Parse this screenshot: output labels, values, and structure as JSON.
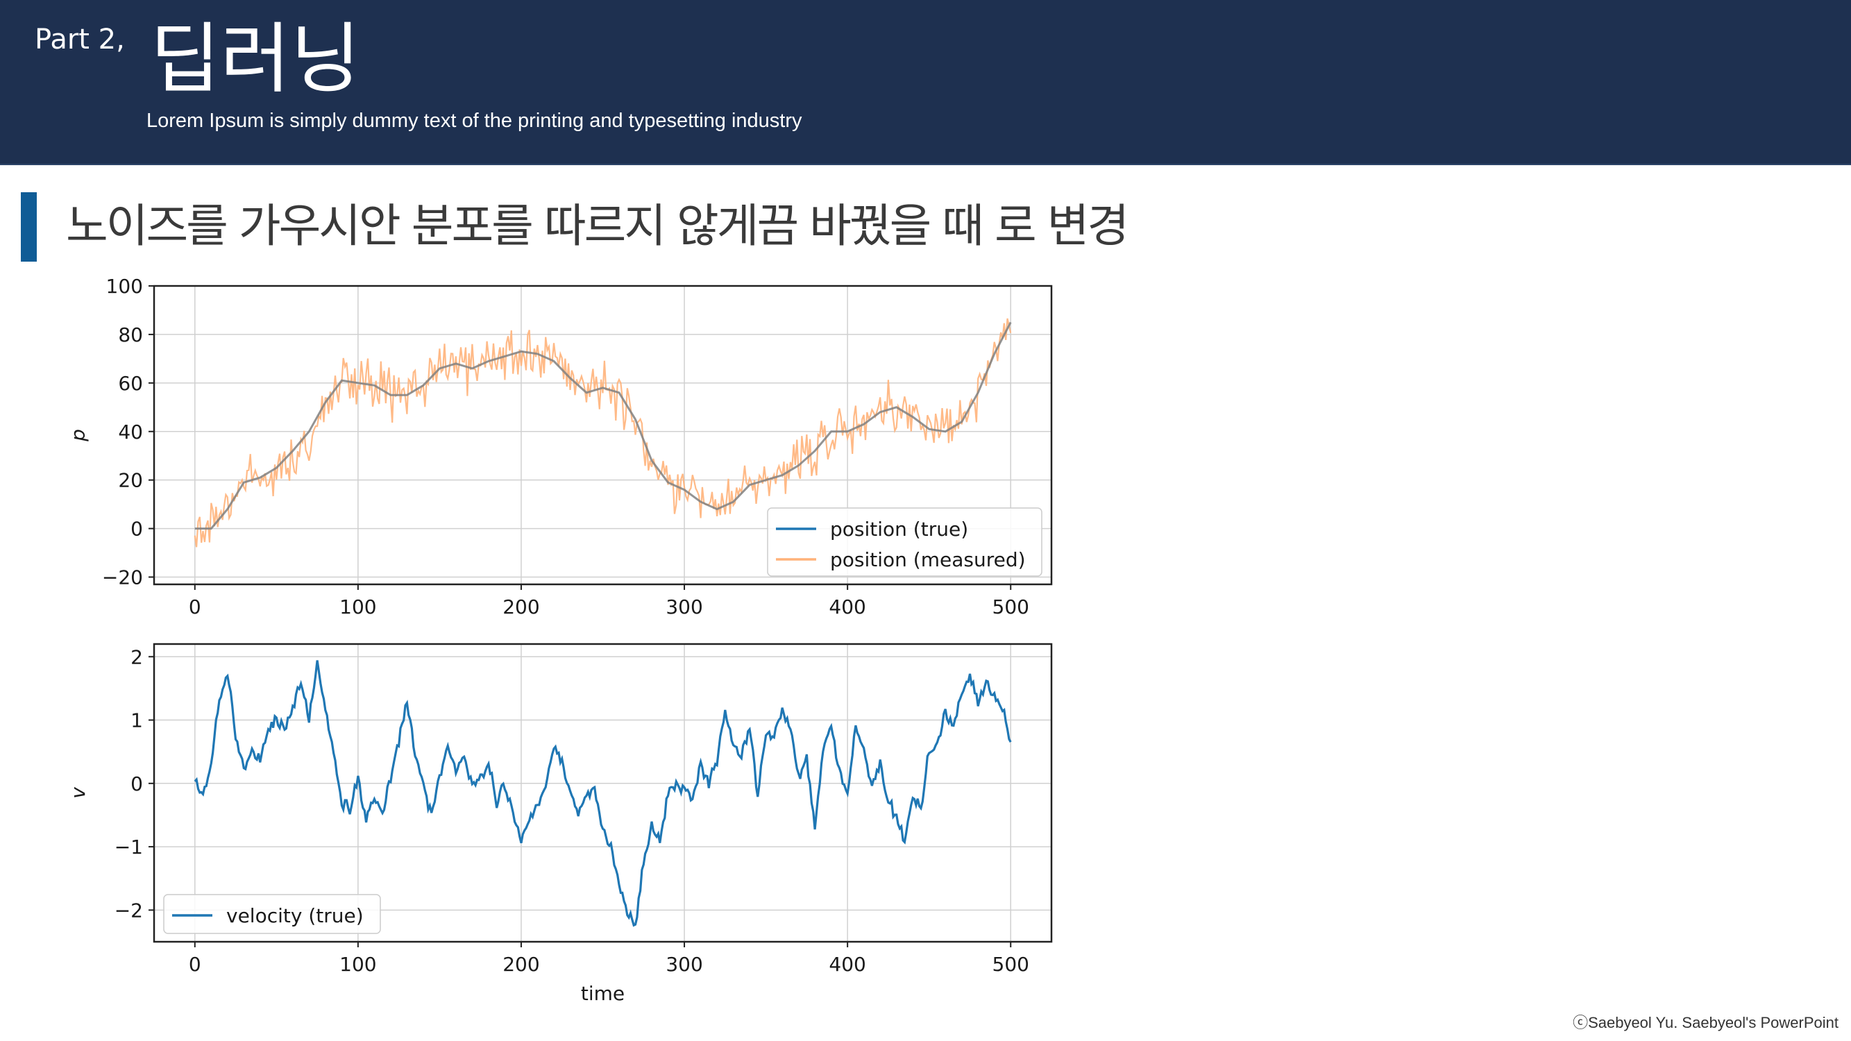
{
  "header": {
    "part_label": "Part 2,",
    "title": "딥러닝",
    "subtitle": "Lorem Ipsum is simply dummy text of the printing and typesetting industry"
  },
  "section": {
    "title": "노이즈를 가우시안 분포를 따르지 않게끔 바꿨을 때 로 변경"
  },
  "footer": {
    "copyright": "ⓒSaebyeol Yu. Saebyeol's PowerPoint"
  },
  "colors": {
    "header_bg": "#1e3050",
    "accent_bar": "#0f5c96",
    "series_true": "#1f77b4",
    "series_measured": "#ffb27a"
  },
  "chart_data": [
    {
      "type": "line",
      "xlabel": "",
      "ylabel": "p",
      "xlim": [
        -25,
        525
      ],
      "ylim": [
        -23,
        100
      ],
      "xticks": [
        0,
        100,
        200,
        300,
        400,
        500
      ],
      "yticks": [
        -20,
        0,
        20,
        40,
        60,
        80,
        100
      ],
      "grid": true,
      "legend": "lower-right",
      "series": [
        {
          "name": "position (true)",
          "color": "#808080",
          "x": [
            0,
            10,
            20,
            30,
            40,
            50,
            60,
            70,
            80,
            90,
            100,
            110,
            120,
            130,
            140,
            150,
            160,
            170,
            180,
            190,
            200,
            210,
            220,
            230,
            240,
            250,
            260,
            270,
            280,
            290,
            300,
            310,
            320,
            330,
            340,
            350,
            360,
            370,
            380,
            390,
            400,
            410,
            420,
            430,
            440,
            450,
            460,
            470,
            480,
            490,
            500
          ],
          "y": [
            0,
            0,
            8,
            19,
            21,
            25,
            32,
            40,
            52,
            61,
            60,
            59,
            55,
            55,
            59,
            66,
            68,
            66,
            69,
            71,
            73,
            72,
            69,
            62,
            56,
            58,
            56,
            45,
            28,
            19,
            16,
            11,
            8,
            11,
            18,
            20,
            22,
            26,
            32,
            40,
            40,
            43,
            48,
            50,
            46,
            41,
            40,
            44,
            56,
            72,
            85
          ]
        },
        {
          "name": "position (measured)",
          "color": "#ffb27a",
          "noise_amplitude": 9
        }
      ]
    },
    {
      "type": "line",
      "xlabel": "time",
      "ylabel": "v",
      "xlim": [
        -25,
        525
      ],
      "ylim": [
        -2.5,
        2.2
      ],
      "xticks": [
        0,
        100,
        200,
        300,
        400,
        500
      ],
      "yticks": [
        -2,
        -1,
        0,
        1,
        2
      ],
      "grid": true,
      "legend": "lower-left",
      "series": [
        {
          "name": "velocity (true)",
          "color": "#1f77b4",
          "x": [
            0,
            5,
            10,
            15,
            20,
            25,
            30,
            35,
            40,
            45,
            50,
            55,
            60,
            65,
            70,
            75,
            80,
            85,
            90,
            95,
            100,
            105,
            110,
            115,
            120,
            125,
            130,
            135,
            140,
            145,
            150,
            155,
            160,
            165,
            170,
            175,
            180,
            185,
            190,
            195,
            200,
            205,
            210,
            215,
            220,
            225,
            230,
            235,
            240,
            245,
            250,
            255,
            260,
            265,
            270,
            275,
            280,
            285,
            290,
            295,
            300,
            305,
            310,
            315,
            320,
            325,
            330,
            335,
            340,
            345,
            350,
            355,
            360,
            365,
            370,
            375,
            380,
            385,
            390,
            395,
            400,
            405,
            410,
            415,
            420,
            425,
            430,
            435,
            440,
            445,
            450,
            455,
            460,
            465,
            470,
            475,
            480,
            485,
            490,
            495,
            500
          ],
          "y": [
            0,
            -0.2,
            0.3,
            1.3,
            1.8,
            0.8,
            0.3,
            0.5,
            0.4,
            0.8,
            1.0,
            0.8,
            1.2,
            1.6,
            1.0,
            1.9,
            1.1,
            0.5,
            -0.3,
            -0.4,
            0.1,
            -0.6,
            -0.2,
            -0.5,
            0.1,
            0.7,
            1.3,
            0.5,
            0.0,
            -0.5,
            0.1,
            0.6,
            0.2,
            0.4,
            0.0,
            0.1,
            0.3,
            -0.3,
            0.0,
            -0.5,
            -0.9,
            -0.6,
            -0.3,
            -0.1,
            0.6,
            0.3,
            -0.1,
            -0.5,
            -0.2,
            -0.1,
            -0.7,
            -1.0,
            -1.6,
            -2.0,
            -2.3,
            -1.2,
            -0.7,
            -0.9,
            -0.2,
            0.0,
            -0.1,
            -0.2,
            0.3,
            0.0,
            0.4,
            1.1,
            0.6,
            0.4,
            0.9,
            -0.2,
            0.8,
            0.7,
            1.2,
            0.9,
            0.1,
            0.4,
            -0.7,
            0.5,
            0.9,
            0.2,
            -0.2,
            0.9,
            0.5,
            0.0,
            0.3,
            -0.3,
            -0.5,
            -0.9,
            -0.2,
            -0.4,
            0.5,
            0.6,
            1.1,
            0.9,
            1.4,
            1.7,
            1.3,
            1.6,
            1.4,
            1.2,
            0.6
          ]
        }
      ]
    }
  ]
}
